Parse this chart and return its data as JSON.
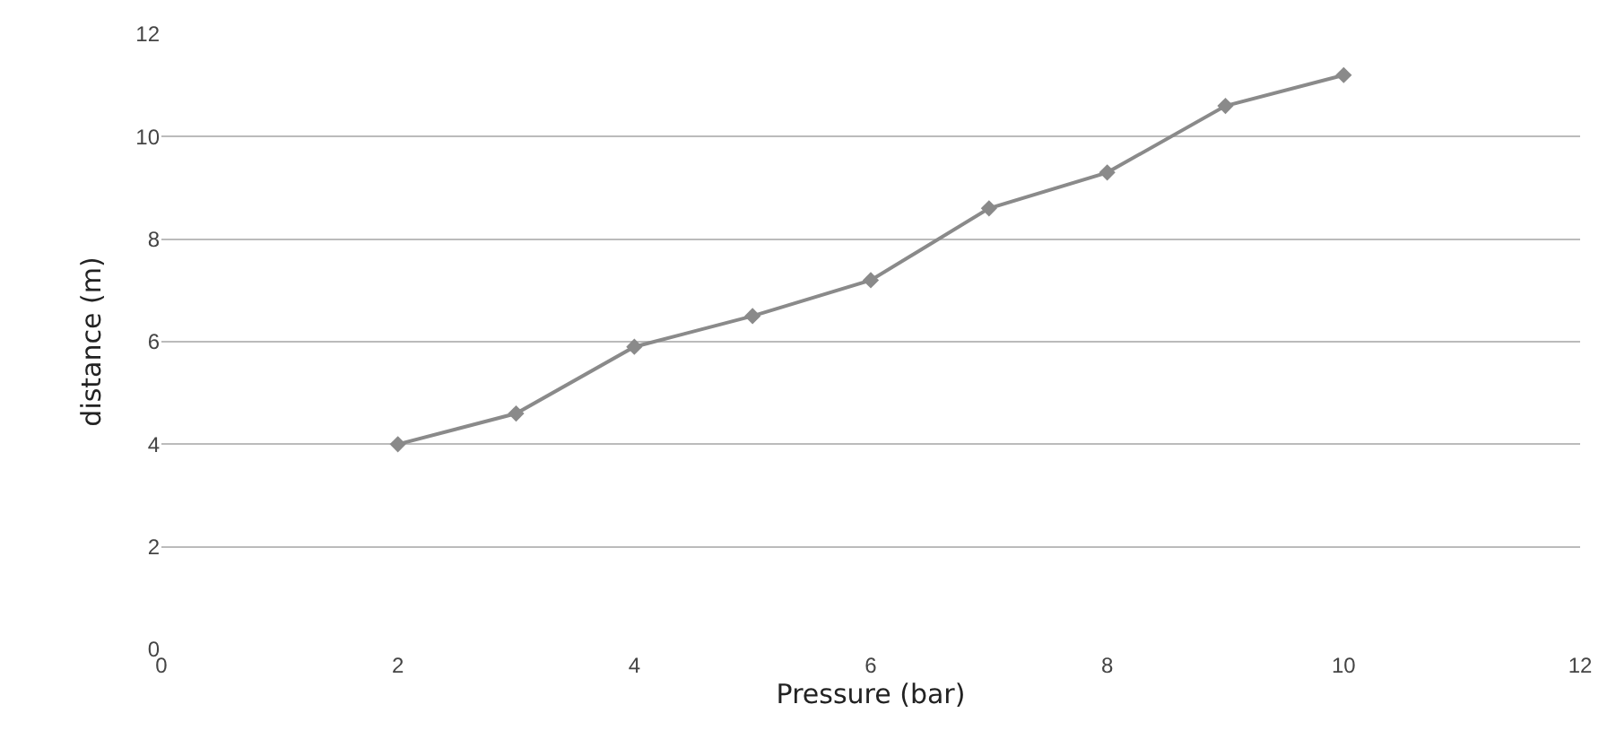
{
  "chart_data": {
    "type": "line",
    "xlabel": "Pressure (bar)",
    "ylabel": "distance (m)",
    "x": [
      2,
      3,
      4,
      5,
      6,
      7,
      8,
      9,
      10
    ],
    "series": [
      {
        "color": "#8a8a8a",
        "values": [
          4.0,
          4.6,
          5.9,
          6.5,
          7.2,
          8.6,
          9.3,
          10.6,
          11.2
        ]
      }
    ],
    "xlim": [
      0,
      12
    ],
    "xticks": [
      0,
      2,
      4,
      6,
      8,
      10,
      12
    ],
    "ylim": [
      0,
      12
    ],
    "yticks": [
      0,
      2,
      4,
      6,
      8,
      10,
      12
    ],
    "grid": "y",
    "marker": "diamond",
    "line_style": "solid",
    "legend": false
  }
}
